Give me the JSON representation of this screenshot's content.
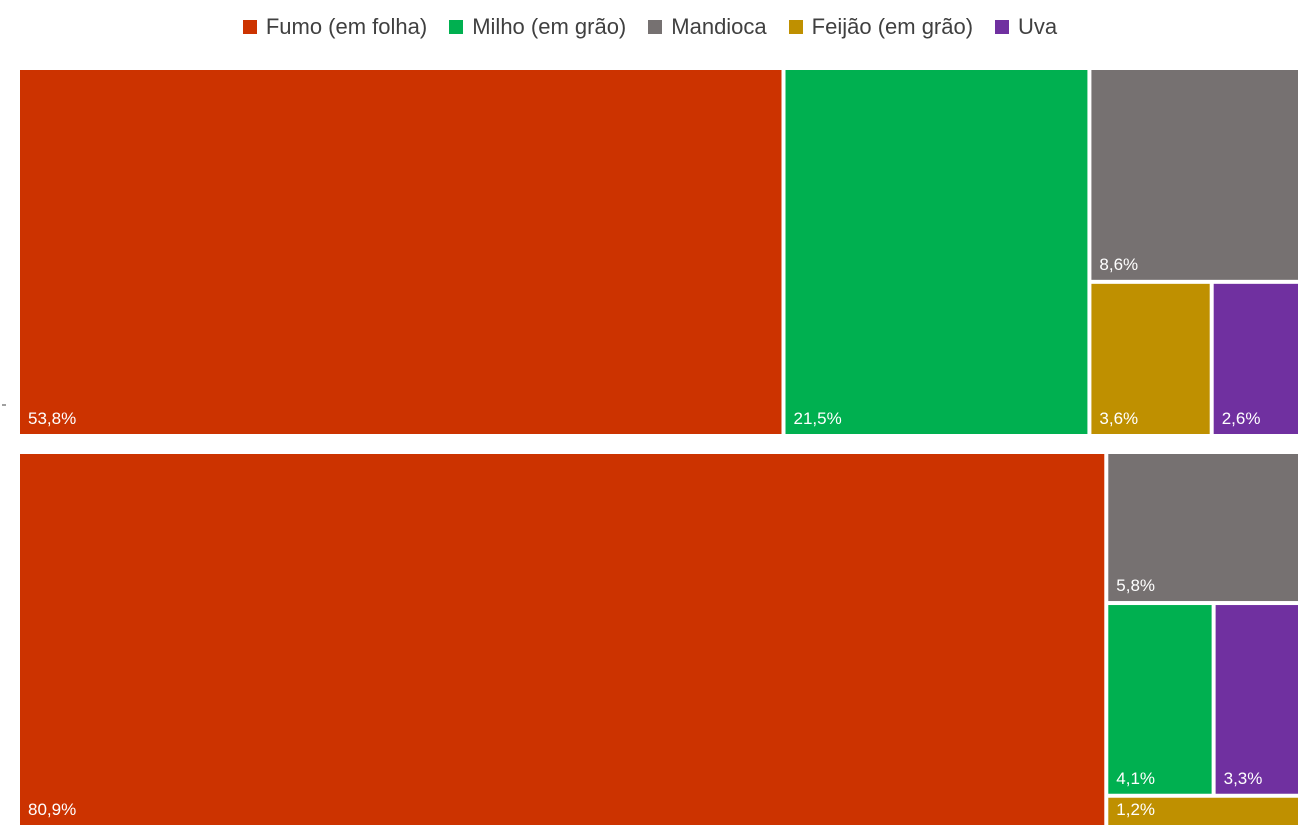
{
  "chart_data": {
    "type": "treemap",
    "legend": [
      {
        "label": "Fumo (em folha)",
        "color": "#CC3300"
      },
      {
        "label": "Milho (em grão)",
        "color": "#00B050"
      },
      {
        "label": "Mandioca",
        "color": "#767171"
      },
      {
        "label": "Feijão (em grão)",
        "color": "#BF9000"
      },
      {
        "label": "Uva",
        "color": "#7030A0"
      }
    ],
    "legend_position": "top",
    "panels": [
      {
        "items": [
          {
            "category": "Fumo (em folha)",
            "value": 53.8,
            "label": "53,8%"
          },
          {
            "category": "Milho (em grão)",
            "value": 21.5,
            "label": "21,5%"
          },
          {
            "category": "Mandioca",
            "value": 8.6,
            "label": "8,6%"
          },
          {
            "category": "Feijão (em grão)",
            "value": 3.6,
            "label": "3,6%"
          },
          {
            "category": "Uva",
            "value": 2.6,
            "label": "2,6%"
          }
        ]
      },
      {
        "items": [
          {
            "category": "Fumo (em folha)",
            "value": 80.9,
            "label": "80,9%"
          },
          {
            "category": "Mandioca",
            "value": 5.8,
            "label": "5,8%"
          },
          {
            "category": "Milho (em grão)",
            "value": 4.1,
            "label": "4,1%"
          },
          {
            "category": "Uva",
            "value": 3.3,
            "label": "3,3%"
          },
          {
            "category": "Feijão (em grão)",
            "value": 1.2,
            "label": "1,2%"
          }
        ]
      }
    ]
  }
}
